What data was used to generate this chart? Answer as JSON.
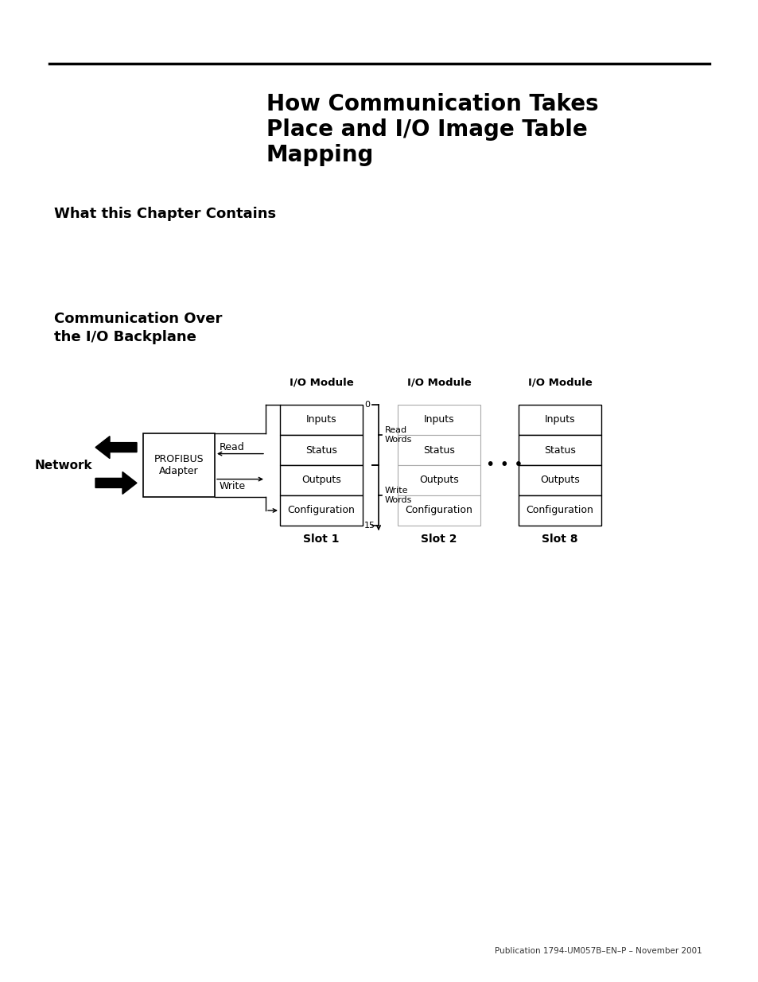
{
  "title_line1": "How Communication Takes",
  "title_line2": "Place and I/O Image Table",
  "title_line3": "Mapping",
  "section1": "What this Chapter Contains",
  "section2_line1": "Communication Over",
  "section2_line2": "the I/O Backplane",
  "footer": "Publication 1794-UM057B–EN–P – November 2001",
  "bg_color": "#ffffff",
  "text_color": "#000000",
  "network_label": "Network",
  "adapter_label": "PROFIBUS\nAdapter",
  "read_label": "Read",
  "write_label": "Write",
  "slot1_label": "Slot 1",
  "slot2_label": "Slot 2",
  "slot8_label": "Slot 8",
  "io_module_label": "I/O Module",
  "read_words_label": "Read\nWords",
  "write_words_label": "Write\nWords",
  "num_0": "0",
  "num_15": "15",
  "rows": [
    "Inputs",
    "Status",
    "Outputs",
    "Configuration"
  ],
  "dots": "• • •"
}
